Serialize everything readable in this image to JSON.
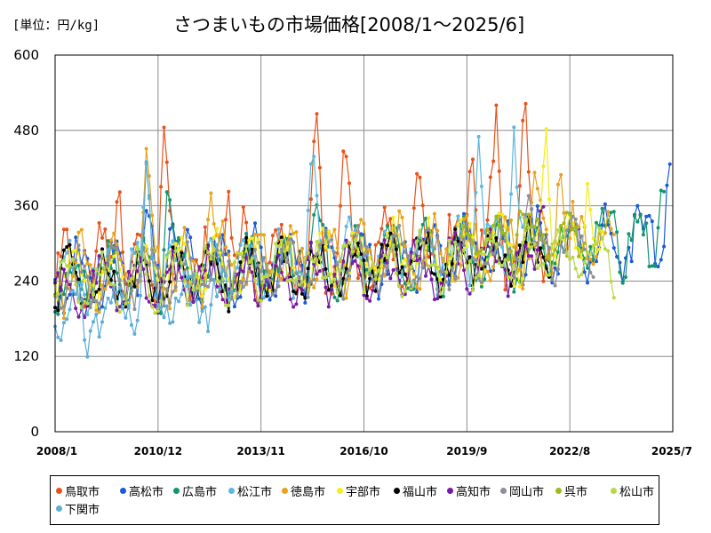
{
  "unit_label": "[単位：円/kg]",
  "chart_data": {
    "type": "line",
    "title": "さつまいもの市場価格[2008/1～2025/6]",
    "xlabel": "",
    "ylabel": "",
    "ylim": [
      0,
      600
    ],
    "y_ticks": [
      "0",
      "120",
      "240",
      "360",
      "480",
      "600"
    ],
    "x_ticks": [
      "2008/1",
      "2010/12",
      "2013/11",
      "2016/10",
      "2019/9",
      "2022/8",
      "2025/7"
    ],
    "x_tick_values": [
      2008.0,
      2010.917,
      2013.833,
      2016.75,
      2019.667,
      2022.583,
      2025.5
    ],
    "xlim": [
      2008.0,
      2025.5
    ],
    "grid": true,
    "legend_position": "bottom",
    "series": [
      {
        "name": "鳥取市",
        "color": "#e8531a",
        "start": 2008.0,
        "end": 2022.0,
        "base": 255,
        "amp": 90,
        "spike": [
          [
            2009.8,
            410
          ],
          [
            2011.1,
            505
          ],
          [
            2012.9,
            395
          ],
          [
            2015.4,
            520
          ],
          [
            2016.2,
            480
          ],
          [
            2018.3,
            425
          ],
          [
            2019.8,
            465
          ],
          [
            2020.5,
            520
          ],
          [
            2021.3,
            550
          ]
        ]
      },
      {
        "name": "高松市",
        "color": "#1a5bd8",
        "start": 2008.0,
        "end": 2025.45,
        "base": 245,
        "amp": 75,
        "spike": [
          [
            2010.6,
            360
          ],
          [
            2011.3,
            350
          ],
          [
            2022.7,
            330
          ],
          [
            2024.5,
            360
          ],
          [
            2025.4,
            435
          ]
        ]
      },
      {
        "name": "広島市",
        "color": "#13956b",
        "start": 2008.0,
        "end": 2025.3,
        "base": 240,
        "amp": 70,
        "spike": [
          [
            2011.2,
            410
          ],
          [
            2015.4,
            370
          ],
          [
            2023.8,
            360
          ],
          [
            2025.2,
            410
          ]
        ]
      },
      {
        "name": "松江市",
        "color": "#5bb8e0",
        "start": 2008.0,
        "end": 2021.6,
        "base": 245,
        "amp": 75,
        "spike": [
          [
            2010.6,
            440
          ],
          [
            2015.3,
            465
          ],
          [
            2020.0,
            470
          ],
          [
            2021.0,
            485
          ]
        ]
      },
      {
        "name": "徳島市",
        "color": "#e8a31a",
        "start": 2008.0,
        "end": 2023.9,
        "base": 250,
        "amp": 75,
        "spike": [
          [
            2010.6,
            465
          ],
          [
            2012.4,
            390
          ],
          [
            2021.6,
            420
          ],
          [
            2022.3,
            440
          ]
        ]
      },
      {
        "name": "宇部市",
        "color": "#f5ec1a",
        "start": 2008.0,
        "end": 2023.5,
        "base": 245,
        "amp": 70,
        "spike": [
          [
            2021.9,
            500
          ],
          [
            2023.1,
            405
          ]
        ]
      },
      {
        "name": "福山市",
        "color": "#000000",
        "start": 2008.0,
        "end": 2022.0,
        "base": 235,
        "amp": 65,
        "spike": [
          [
            2008.3,
            300
          ]
        ]
      },
      {
        "name": "高知市",
        "color": "#7a1aa3",
        "start": 2008.0,
        "end": 2021.9,
        "base": 225,
        "amp": 60,
        "spike": [
          [
            2021.8,
            385
          ]
        ]
      },
      {
        "name": "岡山市",
        "color": "#8b8f99",
        "start": 2008.0,
        "end": 2023.3,
        "base": 240,
        "amp": 65,
        "spike": [
          [
            2021.4,
            385
          ]
        ]
      },
      {
        "name": "呉市",
        "color": "#a5b81a",
        "start": 2019.5,
        "end": 2023.0,
        "base": 280,
        "amp": 50,
        "spike": [
          [
            2021.2,
            360
          ]
        ]
      },
      {
        "name": "松山市",
        "color": "#b8d848",
        "start": 2008.0,
        "end": 2023.9,
        "base": 235,
        "amp": 60,
        "spike": [
          [
            2023.9,
            185
          ]
        ]
      },
      {
        "name": "下関市",
        "color": "#5aaed8",
        "start": 2008.0,
        "end": 2013.0,
        "base": 200,
        "amp": 70,
        "spike": [
          [
            2008.9,
            110
          ],
          [
            2010.6,
            450
          ]
        ]
      }
    ]
  }
}
